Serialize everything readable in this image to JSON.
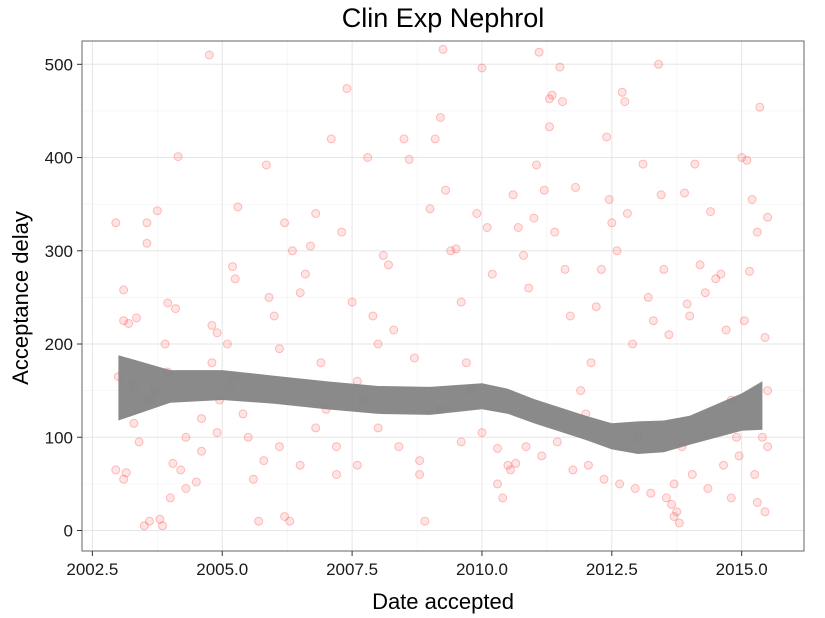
{
  "chart_data": {
    "type": "scatter",
    "title": "Clin Exp Nephrol",
    "xlabel": "Date accepted",
    "ylabel": "Acceptance delay",
    "xlim": [
      2002.3,
      2016.2
    ],
    "ylim": [
      -22,
      525
    ],
    "x_ticks": [
      2002.5,
      2005.0,
      2007.5,
      2010.0,
      2012.5,
      2015.0
    ],
    "x_tick_labels": [
      "2002.5",
      "2005.0",
      "2007.5",
      "2010.0",
      "2012.5",
      "2015.0"
    ],
    "y_ticks": [
      0,
      100,
      200,
      300,
      400,
      500
    ],
    "y_tick_labels": [
      "0",
      "100",
      "200",
      "300",
      "400",
      "500"
    ],
    "grid": true,
    "point_color": "#ff4040",
    "band_color": "#808080",
    "trend": {
      "x": [
        2003.0,
        2004.0,
        2005.0,
        2006.0,
        2007.0,
        2008.0,
        2009.0,
        2010.0,
        2010.5,
        2011.0,
        2012.0,
        2012.5,
        2013.0,
        2013.5,
        2014.0,
        2015.0,
        2015.4
      ],
      "lower": [
        118,
        137,
        140,
        136,
        130,
        125,
        124,
        130,
        125,
        115,
        97,
        87,
        82,
        84,
        92,
        107,
        108
      ],
      "upper": [
        188,
        172,
        172,
        166,
        160,
        155,
        154,
        158,
        152,
        141,
        123,
        115,
        117,
        118,
        123,
        147,
        160
      ]
    },
    "points": [
      [
        2002.95,
        330
      ],
      [
        2003.1,
        258
      ],
      [
        2003.1,
        225
      ],
      [
        2003.2,
        222
      ],
      [
        2003.35,
        228
      ],
      [
        2002.95,
        65
      ],
      [
        2003.15,
        62
      ],
      [
        2003.1,
        55
      ],
      [
        2003.0,
        165
      ],
      [
        2003.3,
        155
      ],
      [
        2003.55,
        330
      ],
      [
        2003.75,
        343
      ],
      [
        2003.55,
        308
      ],
      [
        2003.5,
        5
      ],
      [
        2003.6,
        10
      ],
      [
        2003.8,
        12
      ],
      [
        2003.85,
        5
      ],
      [
        2003.4,
        95
      ],
      [
        2003.7,
        150
      ],
      [
        2003.9,
        200
      ],
      [
        2004.15,
        401
      ],
      [
        2003.95,
        244
      ],
      [
        2004.1,
        238
      ],
      [
        2004.05,
        72
      ],
      [
        2004.2,
        65
      ],
      [
        2004.0,
        35
      ],
      [
        2004.3,
        45
      ],
      [
        2004.5,
        52
      ],
      [
        2004.6,
        120
      ],
      [
        2004.75,
        510
      ],
      [
        2004.8,
        220
      ],
      [
        2004.9,
        212
      ],
      [
        2004.8,
        180
      ],
      [
        2004.95,
        140
      ],
      [
        2005.1,
        200
      ],
      [
        2005.15,
        155
      ],
      [
        2005.2,
        283
      ],
      [
        2005.25,
        270
      ],
      [
        2005.3,
        347
      ],
      [
        2005.25,
        165
      ],
      [
        2005.5,
        100
      ],
      [
        2005.6,
        55
      ],
      [
        2005.7,
        10
      ],
      [
        2005.85,
        392
      ],
      [
        2005.9,
        250
      ],
      [
        2006.0,
        230
      ],
      [
        2006.1,
        195
      ],
      [
        2006.2,
        15
      ],
      [
        2006.3,
        10
      ],
      [
        2006.35,
        300
      ],
      [
        2006.2,
        330
      ],
      [
        2006.5,
        255
      ],
      [
        2006.6,
        275
      ],
      [
        2006.7,
        305
      ],
      [
        2006.8,
        340
      ],
      [
        2006.9,
        180
      ],
      [
        2007.0,
        130
      ],
      [
        2007.1,
        420
      ],
      [
        2007.2,
        60
      ],
      [
        2007.3,
        320
      ],
      [
        2007.4,
        474
      ],
      [
        2007.5,
        245
      ],
      [
        2007.6,
        160
      ],
      [
        2007.7,
        140
      ],
      [
        2007.8,
        400
      ],
      [
        2007.9,
        230
      ],
      [
        2008.0,
        200
      ],
      [
        2008.1,
        295
      ],
      [
        2008.2,
        285
      ],
      [
        2008.3,
        215
      ],
      [
        2008.5,
        420
      ],
      [
        2008.6,
        398
      ],
      [
        2008.7,
        185
      ],
      [
        2008.8,
        60
      ],
      [
        2008.9,
        10
      ],
      [
        2009.0,
        345
      ],
      [
        2009.1,
        420
      ],
      [
        2009.2,
        443
      ],
      [
        2009.25,
        516
      ],
      [
        2009.3,
        365
      ],
      [
        2009.4,
        300
      ],
      [
        2009.5,
        302
      ],
      [
        2009.6,
        245
      ],
      [
        2009.7,
        180
      ],
      [
        2009.8,
        150
      ],
      [
        2009.9,
        340
      ],
      [
        2010.0,
        496
      ],
      [
        2010.1,
        325
      ],
      [
        2010.2,
        275
      ],
      [
        2010.3,
        50
      ],
      [
        2010.4,
        35
      ],
      [
        2010.5,
        70
      ],
      [
        2010.55,
        65
      ],
      [
        2010.6,
        360
      ],
      [
        2010.7,
        325
      ],
      [
        2010.8,
        295
      ],
      [
        2010.9,
        260
      ],
      [
        2011.0,
        335
      ],
      [
        2011.05,
        392
      ],
      [
        2011.1,
        513
      ],
      [
        2011.2,
        365
      ],
      [
        2011.3,
        463
      ],
      [
        2011.35,
        467
      ],
      [
        2011.3,
        433
      ],
      [
        2011.4,
        320
      ],
      [
        2011.5,
        497
      ],
      [
        2011.55,
        460
      ],
      [
        2011.6,
        280
      ],
      [
        2011.7,
        230
      ],
      [
        2011.8,
        368
      ],
      [
        2011.9,
        150
      ],
      [
        2012.0,
        125
      ],
      [
        2012.1,
        180
      ],
      [
        2012.2,
        240
      ],
      [
        2012.3,
        280
      ],
      [
        2012.4,
        422
      ],
      [
        2012.45,
        355
      ],
      [
        2012.5,
        330
      ],
      [
        2012.6,
        300
      ],
      [
        2012.7,
        470
      ],
      [
        2012.75,
        460
      ],
      [
        2012.8,
        340
      ],
      [
        2012.9,
        200
      ],
      [
        2013.0,
        100
      ],
      [
        2013.1,
        393
      ],
      [
        2013.2,
        250
      ],
      [
        2013.3,
        225
      ],
      [
        2013.4,
        500
      ],
      [
        2013.45,
        360
      ],
      [
        2013.5,
        280
      ],
      [
        2013.6,
        210
      ],
      [
        2013.7,
        50
      ],
      [
        2013.75,
        20
      ],
      [
        2013.8,
        8
      ],
      [
        2013.85,
        90
      ],
      [
        2013.9,
        362
      ],
      [
        2013.95,
        243
      ],
      [
        2014.0,
        230
      ],
      [
        2014.1,
        393
      ],
      [
        2014.2,
        285
      ],
      [
        2014.3,
        255
      ],
      [
        2014.4,
        342
      ],
      [
        2014.5,
        270
      ],
      [
        2014.6,
        275
      ],
      [
        2014.7,
        215
      ],
      [
        2014.8,
        140
      ],
      [
        2014.9,
        100
      ],
      [
        2015.0,
        400
      ],
      [
        2015.05,
        225
      ],
      [
        2015.1,
        397
      ],
      [
        2015.15,
        278
      ],
      [
        2015.2,
        355
      ],
      [
        2015.3,
        320
      ],
      [
        2015.35,
        454
      ],
      [
        2015.45,
        207
      ],
      [
        2015.5,
        336
      ],
      [
        2015.5,
        150
      ],
      [
        2015.4,
        100
      ],
      [
        2015.3,
        30
      ],
      [
        2015.45,
        20
      ],
      [
        2003.3,
        115
      ],
      [
        2003.6,
        140
      ],
      [
        2003.95,
        170
      ],
      [
        2004.3,
        100
      ],
      [
        2004.6,
        85
      ],
      [
        2004.9,
        105
      ],
      [
        2005.4,
        125
      ],
      [
        2005.8,
        75
      ],
      [
        2006.1,
        90
      ],
      [
        2006.5,
        70
      ],
      [
        2006.8,
        110
      ],
      [
        2007.2,
        90
      ],
      [
        2007.6,
        70
      ],
      [
        2008.0,
        110
      ],
      [
        2008.4,
        90
      ],
      [
        2008.8,
        75
      ],
      [
        2009.2,
        130
      ],
      [
        2009.6,
        95
      ],
      [
        2010.0,
        105
      ],
      [
        2010.3,
        88
      ],
      [
        2010.65,
        72
      ],
      [
        2010.85,
        90
      ],
      [
        2011.15,
        80
      ],
      [
        2011.45,
        95
      ],
      [
        2011.75,
        65
      ],
      [
        2012.05,
        70
      ],
      [
        2012.35,
        55
      ],
      [
        2012.65,
        50
      ],
      [
        2012.95,
        45
      ],
      [
        2013.25,
        40
      ],
      [
        2013.55,
        35
      ],
      [
        2013.65,
        28
      ],
      [
        2013.7,
        15
      ],
      [
        2014.05,
        60
      ],
      [
        2014.35,
        45
      ],
      [
        2014.65,
        70
      ],
      [
        2014.95,
        80
      ],
      [
        2015.25,
        60
      ],
      [
        2015.5,
        90
      ],
      [
        2014.8,
        35
      ]
    ]
  }
}
